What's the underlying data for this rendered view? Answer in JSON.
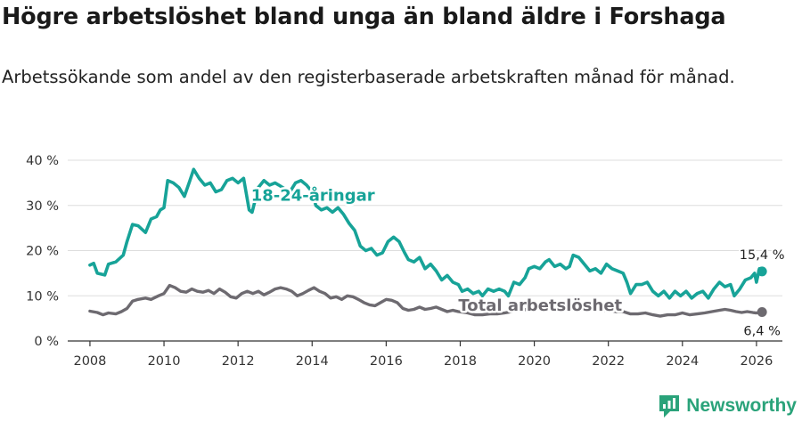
{
  "header": {
    "title": "Högre arbetslöshet bland unga än bland äldre i Forshaga",
    "subtitle": "Arbetssökande som andel av den registerbaserade arbetskraften månad för månad."
  },
  "brand": {
    "name": "Newsworthy",
    "icon": "newsworthy-logo-icon"
  },
  "colors": {
    "youth": "#17a398",
    "total": "#6d6a70",
    "grid": "#dddddd",
    "axis": "#333333"
  },
  "chart_data": {
    "type": "line",
    "title": "Högre arbetslöshet bland unga än bland äldre i Forshaga",
    "subtitle": "Arbetssökande som andel av den registerbaserade arbetskraften månad för månad.",
    "xlabel": "",
    "ylabel": "",
    "xlim": [
      2007.4,
      2026.7
    ],
    "ylim": [
      0,
      40
    ],
    "grid": true,
    "x_ticks": [
      2008,
      2010,
      2012,
      2014,
      2016,
      2018,
      2020,
      2022,
      2024,
      2026
    ],
    "y_ticks": [
      0,
      10,
      20,
      30,
      40
    ],
    "y_tick_labels": [
      "0 %",
      "10 %",
      "20 %",
      "30 %",
      "40 %"
    ],
    "series": [
      {
        "name": "18-24-åringar",
        "label": "18-24-åringar",
        "end_label": "15,4 %",
        "points": [
          [
            2008.0,
            16.8
          ],
          [
            2008.1,
            17.2
          ],
          [
            2008.2,
            15.0
          ],
          [
            2008.4,
            14.6
          ],
          [
            2008.5,
            17.0
          ],
          [
            2008.7,
            17.5
          ],
          [
            2008.9,
            19.0
          ],
          [
            2009.0,
            22.0
          ],
          [
            2009.15,
            25.8
          ],
          [
            2009.3,
            25.5
          ],
          [
            2009.5,
            24.0
          ],
          [
            2009.65,
            27.0
          ],
          [
            2009.8,
            27.5
          ],
          [
            2009.9,
            29.0
          ],
          [
            2010.0,
            29.5
          ],
          [
            2010.1,
            35.5
          ],
          [
            2010.25,
            35.0
          ],
          [
            2010.4,
            34.0
          ],
          [
            2010.55,
            32.0
          ],
          [
            2010.7,
            35.5
          ],
          [
            2010.8,
            38.0
          ],
          [
            2010.95,
            36.0
          ],
          [
            2011.1,
            34.5
          ],
          [
            2011.25,
            35.0
          ],
          [
            2011.4,
            33.0
          ],
          [
            2011.55,
            33.5
          ],
          [
            2011.7,
            35.5
          ],
          [
            2011.85,
            36.0
          ],
          [
            2012.0,
            35.0
          ],
          [
            2012.15,
            36.0
          ],
          [
            2012.3,
            29.0
          ],
          [
            2012.38,
            28.5
          ],
          [
            2012.55,
            34.0
          ],
          [
            2012.7,
            35.5
          ],
          [
            2012.85,
            34.5
          ],
          [
            2013.0,
            35.0
          ],
          [
            2013.1,
            34.5
          ],
          [
            2013.2,
            34.0
          ],
          [
            2013.4,
            33.0
          ],
          [
            2013.55,
            35.0
          ],
          [
            2013.7,
            35.5
          ],
          [
            2013.85,
            34.5
          ],
          [
            2014.0,
            33.0
          ],
          [
            2014.1,
            30.0
          ],
          [
            2014.25,
            29.0
          ],
          [
            2014.4,
            29.5
          ],
          [
            2014.55,
            28.5
          ],
          [
            2014.7,
            29.5
          ],
          [
            2014.85,
            28.0
          ],
          [
            2015.0,
            26.0
          ],
          [
            2015.15,
            24.5
          ],
          [
            2015.3,
            21.0
          ],
          [
            2015.45,
            20.0
          ],
          [
            2015.6,
            20.5
          ],
          [
            2015.75,
            19.0
          ],
          [
            2015.9,
            19.5
          ],
          [
            2016.05,
            22.0
          ],
          [
            2016.2,
            23.0
          ],
          [
            2016.35,
            22.0
          ],
          [
            2016.5,
            19.5
          ],
          [
            2016.6,
            18.0
          ],
          [
            2016.75,
            17.5
          ],
          [
            2016.9,
            18.5
          ],
          [
            2017.05,
            16.0
          ],
          [
            2017.2,
            17.0
          ],
          [
            2017.35,
            15.5
          ],
          [
            2017.5,
            13.5
          ],
          [
            2017.65,
            14.5
          ],
          [
            2017.8,
            13.0
          ],
          [
            2017.95,
            12.5
          ],
          [
            2018.05,
            11.0
          ],
          [
            2018.2,
            11.5
          ],
          [
            2018.35,
            10.5
          ],
          [
            2018.5,
            11.0
          ],
          [
            2018.6,
            10.0
          ],
          [
            2018.75,
            11.5
          ],
          [
            2018.9,
            11.0
          ],
          [
            2019.05,
            11.5
          ],
          [
            2019.2,
            11.0
          ],
          [
            2019.3,
            10.0
          ],
          [
            2019.45,
            13.0
          ],
          [
            2019.6,
            12.5
          ],
          [
            2019.75,
            14.0
          ],
          [
            2019.85,
            16.0
          ],
          [
            2020.0,
            16.5
          ],
          [
            2020.15,
            16.0
          ],
          [
            2020.3,
            17.5
          ],
          [
            2020.4,
            18.0
          ],
          [
            2020.55,
            16.5
          ],
          [
            2020.7,
            17.0
          ],
          [
            2020.85,
            16.0
          ],
          [
            2020.95,
            16.5
          ],
          [
            2021.05,
            19.0
          ],
          [
            2021.2,
            18.5
          ],
          [
            2021.35,
            17.0
          ],
          [
            2021.5,
            15.5
          ],
          [
            2021.65,
            16.0
          ],
          [
            2021.8,
            15.0
          ],
          [
            2021.95,
            17.0
          ],
          [
            2022.1,
            16.0
          ],
          [
            2022.25,
            15.5
          ],
          [
            2022.4,
            15.0
          ],
          [
            2022.5,
            13.0
          ],
          [
            2022.6,
            10.5
          ],
          [
            2022.75,
            12.5
          ],
          [
            2022.9,
            12.5
          ],
          [
            2023.05,
            13.0
          ],
          [
            2023.2,
            11.0
          ],
          [
            2023.35,
            10.0
          ],
          [
            2023.5,
            11.0
          ],
          [
            2023.65,
            9.5
          ],
          [
            2023.8,
            11.0
          ],
          [
            2023.95,
            10.0
          ],
          [
            2024.1,
            11.0
          ],
          [
            2024.25,
            9.5
          ],
          [
            2024.4,
            10.5
          ],
          [
            2024.55,
            11.0
          ],
          [
            2024.7,
            9.5
          ],
          [
            2024.85,
            11.5
          ],
          [
            2025.0,
            13.0
          ],
          [
            2025.15,
            12.0
          ],
          [
            2025.3,
            12.5
          ],
          [
            2025.4,
            10.0
          ],
          [
            2025.55,
            11.5
          ],
          [
            2025.7,
            13.5
          ],
          [
            2025.85,
            14.0
          ],
          [
            2025.95,
            15.0
          ],
          [
            2026.0,
            13.0
          ],
          [
            2026.08,
            16.0
          ],
          [
            2026.15,
            15.4
          ]
        ]
      },
      {
        "name": "Total arbetslöshet",
        "label": "Total arbetslöshet",
        "end_label": "6,4 %",
        "points": [
          [
            2008.0,
            6.6
          ],
          [
            2008.2,
            6.3
          ],
          [
            2008.35,
            5.8
          ],
          [
            2008.5,
            6.2
          ],
          [
            2008.7,
            6.0
          ],
          [
            2008.85,
            6.5
          ],
          [
            2009.0,
            7.2
          ],
          [
            2009.15,
            8.8
          ],
          [
            2009.3,
            9.2
          ],
          [
            2009.5,
            9.5
          ],
          [
            2009.65,
            9.2
          ],
          [
            2009.85,
            10.0
          ],
          [
            2010.0,
            10.5
          ],
          [
            2010.15,
            12.3
          ],
          [
            2010.3,
            11.8
          ],
          [
            2010.45,
            11.0
          ],
          [
            2010.6,
            10.8
          ],
          [
            2010.75,
            11.5
          ],
          [
            2010.9,
            11.0
          ],
          [
            2011.05,
            10.8
          ],
          [
            2011.2,
            11.2
          ],
          [
            2011.35,
            10.5
          ],
          [
            2011.5,
            11.5
          ],
          [
            2011.65,
            10.8
          ],
          [
            2011.8,
            9.8
          ],
          [
            2011.95,
            9.5
          ],
          [
            2012.1,
            10.5
          ],
          [
            2012.25,
            11.0
          ],
          [
            2012.4,
            10.5
          ],
          [
            2012.55,
            11.0
          ],
          [
            2012.7,
            10.2
          ],
          [
            2012.85,
            10.8
          ],
          [
            2013.0,
            11.5
          ],
          [
            2013.15,
            11.8
          ],
          [
            2013.3,
            11.5
          ],
          [
            2013.45,
            11.0
          ],
          [
            2013.6,
            10.0
          ],
          [
            2013.75,
            10.5
          ],
          [
            2013.9,
            11.2
          ],
          [
            2014.05,
            11.8
          ],
          [
            2014.2,
            11.0
          ],
          [
            2014.35,
            10.5
          ],
          [
            2014.5,
            9.5
          ],
          [
            2014.65,
            9.8
          ],
          [
            2014.8,
            9.2
          ],
          [
            2014.95,
            10.0
          ],
          [
            2015.1,
            9.8
          ],
          [
            2015.25,
            9.2
          ],
          [
            2015.4,
            8.5
          ],
          [
            2015.55,
            8.0
          ],
          [
            2015.7,
            7.8
          ],
          [
            2015.85,
            8.5
          ],
          [
            2016.0,
            9.2
          ],
          [
            2016.15,
            9.0
          ],
          [
            2016.3,
            8.5
          ],
          [
            2016.45,
            7.2
          ],
          [
            2016.6,
            6.8
          ],
          [
            2016.75,
            7.0
          ],
          [
            2016.9,
            7.5
          ],
          [
            2017.05,
            7.0
          ],
          [
            2017.2,
            7.2
          ],
          [
            2017.35,
            7.5
          ],
          [
            2017.5,
            7.0
          ],
          [
            2017.65,
            6.5
          ],
          [
            2017.8,
            6.8
          ],
          [
            2017.95,
            6.5
          ],
          [
            2018.2,
            6.2
          ],
          [
            2018.4,
            5.8
          ],
          [
            2018.6,
            5.8
          ],
          [
            2018.8,
            6.0
          ],
          [
            2019.0,
            6.0
          ],
          [
            2019.2,
            6.2
          ],
          [
            2019.4,
            6.5
          ],
          [
            2019.6,
            6.8
          ],
          [
            2019.8,
            7.0
          ],
          [
            2020.0,
            7.0
          ],
          [
            2020.3,
            7.2
          ],
          [
            2020.6,
            7.2
          ],
          [
            2020.9,
            7.0
          ],
          [
            2021.2,
            7.2
          ],
          [
            2021.5,
            7.0
          ],
          [
            2021.8,
            6.8
          ],
          [
            2022.0,
            6.8
          ],
          [
            2022.2,
            6.5
          ],
          [
            2022.4,
            6.5
          ],
          [
            2022.6,
            6.0
          ],
          [
            2022.8,
            6.0
          ],
          [
            2023.0,
            6.2
          ],
          [
            2023.2,
            5.8
          ],
          [
            2023.4,
            5.5
          ],
          [
            2023.6,
            5.8
          ],
          [
            2023.8,
            5.8
          ],
          [
            2024.0,
            6.2
          ],
          [
            2024.2,
            5.8
          ],
          [
            2024.4,
            6.0
          ],
          [
            2024.6,
            6.2
          ],
          [
            2024.8,
            6.5
          ],
          [
            2025.0,
            6.8
          ],
          [
            2025.15,
            7.0
          ],
          [
            2025.3,
            6.8
          ],
          [
            2025.45,
            6.5
          ],
          [
            2025.6,
            6.3
          ],
          [
            2025.75,
            6.5
          ],
          [
            2025.9,
            6.3
          ],
          [
            2026.0,
            6.2
          ],
          [
            2026.15,
            6.4
          ]
        ]
      }
    ]
  }
}
